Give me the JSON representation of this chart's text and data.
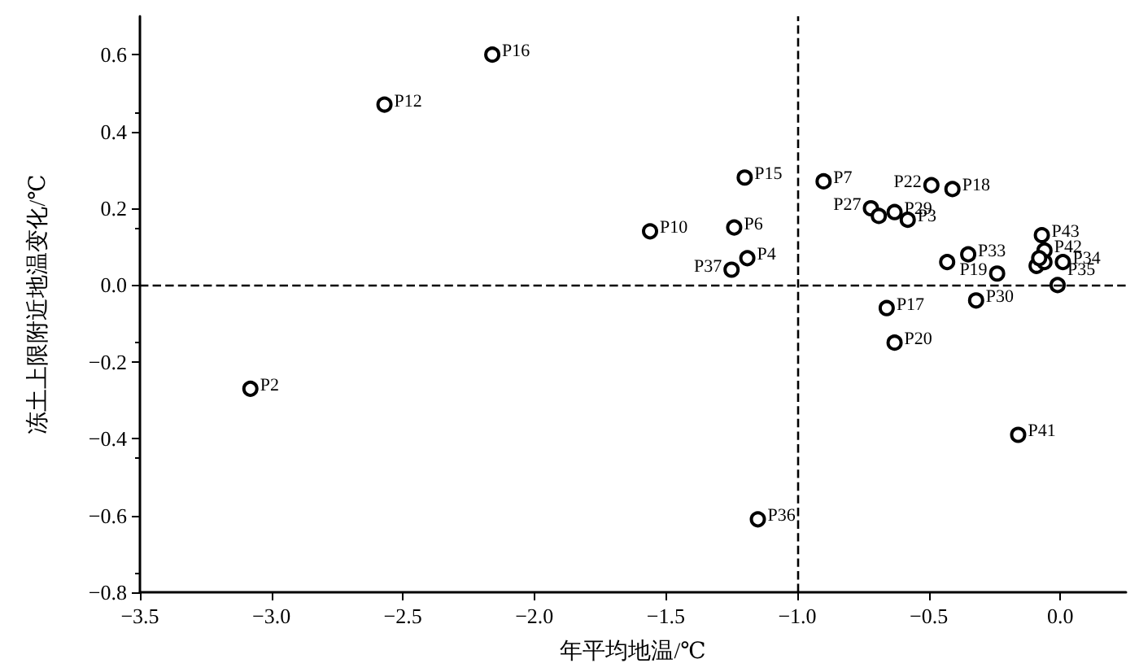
{
  "chart_data": {
    "type": "scatter",
    "xlabel": "年平均地温/℃",
    "ylabel": "冻土上限附近地温变化/℃",
    "x": [
      -2.16,
      -2.57,
      -3.08,
      -1.56,
      -1.24,
      -1.2,
      -1.19,
      -1.25,
      -1.15,
      -0.9,
      -0.72,
      -0.69,
      -0.63,
      -0.58,
      -0.49,
      -0.41,
      -0.35,
      -0.43,
      -0.07,
      -0.06,
      0.01,
      -0.09,
      -0.06,
      -0.08,
      -0.24,
      -0.01,
      -0.32,
      -0.66,
      -0.63,
      -0.16
    ],
    "series": [
      {
        "color": "#000000",
        "values": [
          0.6,
          0.47,
          -0.27,
          0.14,
          0.15,
          0.28,
          0.07,
          0.04,
          -0.61,
          0.27,
          0.2,
          0.18,
          0.19,
          0.17,
          0.26,
          0.25,
          0.08,
          0.06,
          0.13,
          0.09,
          0.06,
          0.05,
          0.06,
          0.07,
          0.03,
          0.0,
          -0.04,
          -0.06,
          -0.15,
          -0.39
        ],
        "value_labels": [
          "P16",
          "P12",
          "P2",
          "P10",
          "P6",
          "P15",
          "P4",
          "P37",
          "P36",
          "P7",
          "P27",
          null,
          "P29",
          "P3",
          "P22",
          "P18",
          "P33",
          null,
          "P43",
          "P42",
          "P34",
          null,
          null,
          null,
          "P19",
          "P35",
          "P30",
          "P17",
          "P20",
          "P41"
        ]
      }
    ],
    "xlim": [
      -3.5,
      0.25
    ],
    "xticks": [
      -3.5,
      {
        "value": -3,
        "label": "−3.0"
      },
      -2.5,
      {
        "value": -2,
        "label": "−2.0"
      },
      -1.5,
      {
        "value": -1,
        "label": "−1.0"
      },
      -0.5,
      {
        "value": 0,
        "label": "0.0"
      }
    ],
    "ylim": [
      -0.8,
      0.7
    ],
    "yticks": [
      -0.8,
      -0.6,
      -0.4,
      -0.2,
      {
        "value": 0,
        "label": "0.0"
      },
      0.2,
      0.4,
      0.6
    ],
    "marker": "circle",
    "grid": false,
    "ref_lines": [
      {
        "axis": "x",
        "value": -1.0,
        "line_style": "dashed",
        "color": "#000000"
      },
      {
        "axis": "y",
        "value": 0,
        "line_style": "dashed",
        "color": "#000000"
      }
    ]
  }
}
